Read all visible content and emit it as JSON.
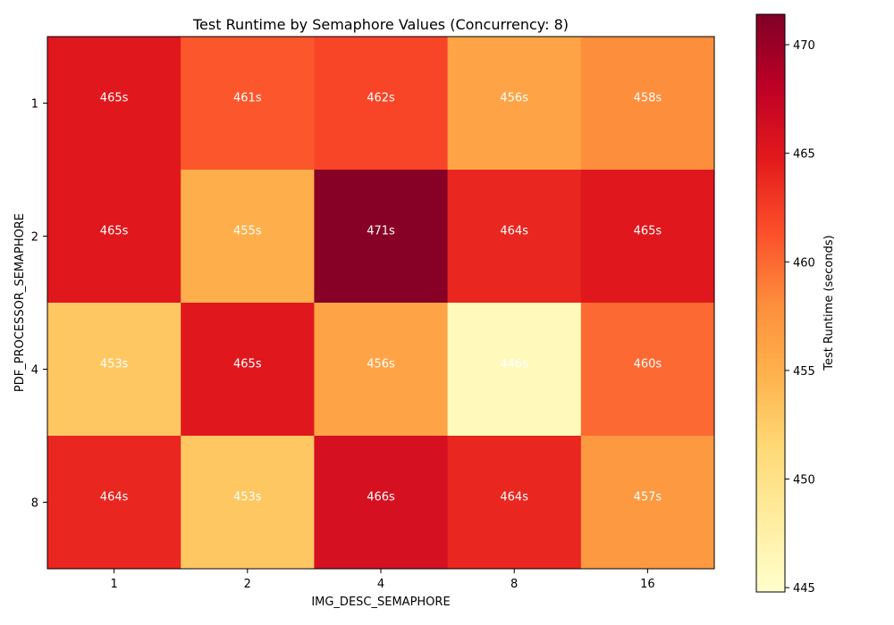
{
  "chart_data": {
    "type": "heatmap",
    "title": "Test Runtime by Semaphore Values (Concurrency: 8)",
    "xlabel": "IMG_DESC_SEMAPHORE",
    "ylabel": "PDF_PROCESSOR_SEMAPHORE",
    "x_categories": [
      "1",
      "2",
      "4",
      "8",
      "16"
    ],
    "y_categories": [
      "1",
      "2",
      "4",
      "8"
    ],
    "values": [
      [
        465,
        461,
        462,
        456,
        458
      ],
      [
        465,
        455,
        471,
        464,
        465
      ],
      [
        453,
        465,
        456,
        446,
        460
      ],
      [
        464,
        453,
        466,
        464,
        457
      ]
    ],
    "cell_labels": [
      [
        "465s",
        "461s",
        "462s",
        "456s",
        "458s"
      ],
      [
        "465s",
        "455s",
        "471s",
        "464s",
        "465s"
      ],
      [
        "453s",
        "465s",
        "456s",
        "446s",
        "460s"
      ],
      [
        "464s",
        "453s",
        "466s",
        "464s",
        "457s"
      ]
    ],
    "colorbar": {
      "label": "Test Runtime (seconds)",
      "range": [
        444.8,
        471.4
      ],
      "ticks": [
        445,
        450,
        455,
        460,
        465,
        470
      ],
      "colormap": "YlOrRd"
    }
  }
}
